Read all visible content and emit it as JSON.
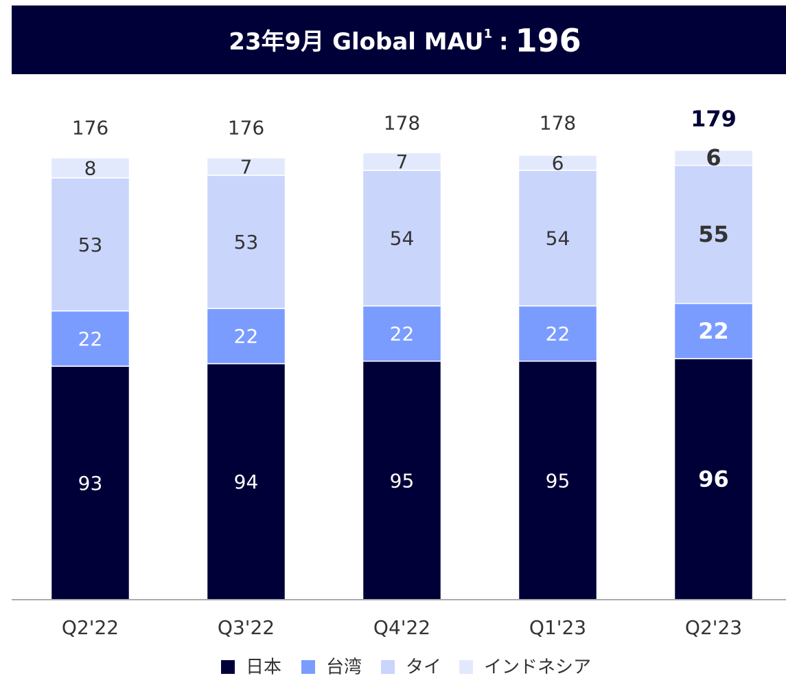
{
  "chart_data": {
    "type": "stacked_bar",
    "title": "23年9月 Global MAU",
    "title_footnote": "1",
    "title_separator": ":",
    "headline": "196",
    "categories": [
      "Q2'22",
      "Q3'22",
      "Q4'22",
      "Q1'23",
      "Q2'23"
    ],
    "series": [
      {
        "name": "日本",
        "color": "#000038",
        "values": [
          93,
          94,
          95,
          95,
          96
        ]
      },
      {
        "name": "台湾",
        "color": "#7b9cff",
        "values": [
          22,
          22,
          22,
          22,
          22
        ]
      },
      {
        "name": "タイ",
        "color": "#c9d5fb",
        "values": [
          53,
          53,
          54,
          54,
          55
        ]
      },
      {
        "name": "インドネシア",
        "color": "#e3e9fd",
        "values": [
          8,
          7,
          7,
          6,
          6
        ]
      }
    ],
    "totals": [
      176,
      176,
      178,
      178,
      179
    ],
    "ylim": [
      0,
      200
    ]
  }
}
